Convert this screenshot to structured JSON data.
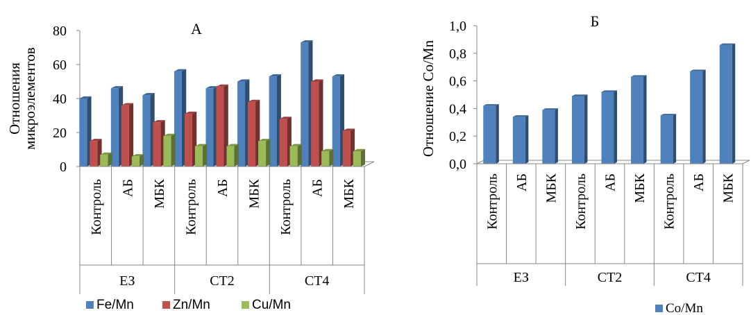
{
  "chart_data": [
    {
      "type": "bar",
      "panel_letter": "А",
      "ylabel_lines": [
        "Отношения",
        "микроэлементов"
      ],
      "ylim": [
        0,
        80
      ],
      "yticks": [
        "0",
        "20",
        "40",
        "60",
        "80"
      ],
      "groups": [
        "ЕЗ",
        "СТ2",
        "СТ4"
      ],
      "categories": [
        "Контроль",
        "АБ",
        "МБК",
        "Контроль",
        "АБ",
        "МБК",
        "Контроль",
        "АБ",
        "МБК"
      ],
      "series": [
        {
          "name": "Fe/Mn",
          "color": "#4f81bd",
          "values": [
            40,
            46,
            42,
            56,
            46,
            50,
            53,
            73,
            53
          ]
        },
        {
          "name": "Zn/Mn",
          "color": "#c0504d",
          "values": [
            15,
            36,
            26,
            31,
            47,
            38,
            28,
            50,
            21
          ]
        },
        {
          "name": "Cu/Mn",
          "color": "#9bbb59",
          "values": [
            7,
            6,
            18,
            12,
            12,
            15,
            12,
            9,
            9
          ]
        }
      ],
      "legend_position": "bottom",
      "grid": false
    },
    {
      "type": "bar",
      "panel_letter": "Б",
      "ylabel": "Отношение Co/Mn",
      "ylim": [
        0,
        1.0
      ],
      "yticks": [
        "0,0",
        "0,2",
        "0,4",
        "0,6",
        "0,8",
        "1,0"
      ],
      "groups": [
        "ЕЗ",
        "СТ2",
        "СТ4"
      ],
      "categories": [
        "Контроль",
        "АБ",
        "МБК",
        "Контроль",
        "АБ",
        "МБК",
        "Контроль",
        "АБ",
        "МБК"
      ],
      "series": [
        {
          "name": "Co/Mn",
          "color": "#4f81bd",
          "values": [
            0.42,
            0.34,
            0.39,
            0.49,
            0.52,
            0.63,
            0.35,
            0.67,
            0.86
          ]
        }
      ],
      "legend_position": "bottom",
      "grid": false
    }
  ]
}
